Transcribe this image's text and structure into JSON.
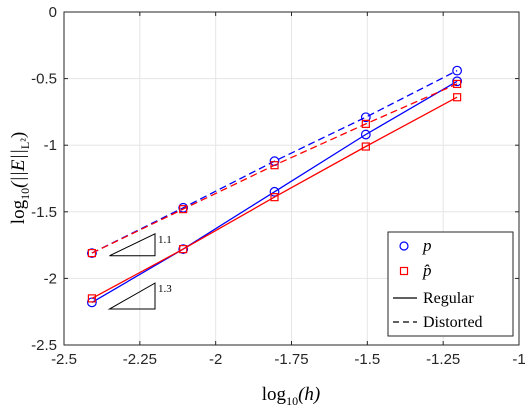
{
  "chart_data": {
    "type": "line",
    "xlabel": {
      "prefix": "log",
      "sub": "10",
      "body": "(h)"
    },
    "ylabel": {
      "prefix": "log",
      "sub": "10",
      "body": "(||E||",
      "sub2": "L²",
      "close": ")"
    },
    "xlim": [
      -2.5,
      -1
    ],
    "ylim": [
      -2.5,
      0
    ],
    "xticks": [
      -2.5,
      -2.25,
      -2,
      -1.75,
      -1.5,
      -1.25,
      -1
    ],
    "xtick_labels": [
      "-2.5",
      "-2.25",
      "-2",
      "-1.75",
      "-1.5",
      "-1.25",
      "-1"
    ],
    "yticks": [
      0,
      -0.5,
      -1,
      -1.5,
      -2,
      -2.5
    ],
    "ytick_labels": [
      "0",
      "-0.5",
      "-1",
      "-1.5",
      "-2",
      "-2.5"
    ],
    "grid": true,
    "legend_position": "bottom-right",
    "series": [
      {
        "name": "p (Regular)",
        "color": "#0000ff",
        "dash": "solid",
        "marker": "circle",
        "x": [
          -2.408,
          -2.107,
          -1.806,
          -1.505,
          -1.204
        ],
        "y": [
          -2.18,
          -1.78,
          -1.35,
          -0.92,
          -0.52
        ]
      },
      {
        "name": "p (Distorted)",
        "color": "#0000ff",
        "dash": "dashed",
        "marker": "circle",
        "x": [
          -2.408,
          -2.107,
          -1.806,
          -1.505,
          -1.204
        ],
        "y": [
          -1.81,
          -1.47,
          -1.12,
          -0.79,
          -0.44
        ]
      },
      {
        "name": "p̂ (Regular)",
        "color": "#ff0000",
        "dash": "solid",
        "marker": "square",
        "x": [
          -2.408,
          -2.107,
          -1.806,
          -1.505,
          -1.204
        ],
        "y": [
          -2.15,
          -1.78,
          -1.39,
          -1.01,
          -0.64
        ]
      },
      {
        "name": "p̂ (Distorted)",
        "color": "#ff0000",
        "dash": "dashed",
        "marker": "square",
        "x": [
          -2.408,
          -2.107,
          -1.806,
          -1.505,
          -1.204
        ],
        "y": [
          -1.81,
          -1.48,
          -1.15,
          -0.84,
          -0.54
        ]
      }
    ],
    "slope_triangles": [
      {
        "label": "1.1",
        "x0": -2.35,
        "x1": -2.2,
        "y_bottom": -1.83,
        "slope": 1.1
      },
      {
        "label": "1.3",
        "x0": -2.35,
        "x1": -2.2,
        "y_bottom": -2.23,
        "slope": 1.3
      }
    ],
    "legend": [
      {
        "symbol": "p",
        "marker": "circle",
        "color": "#0000ff"
      },
      {
        "symbol": "p̂",
        "marker": "square",
        "color": "#ff0000"
      },
      {
        "label": "Regular",
        "line": "solid",
        "color": "#000000"
      },
      {
        "label": "Distorted",
        "line": "dashed",
        "color": "#000000"
      }
    ]
  }
}
